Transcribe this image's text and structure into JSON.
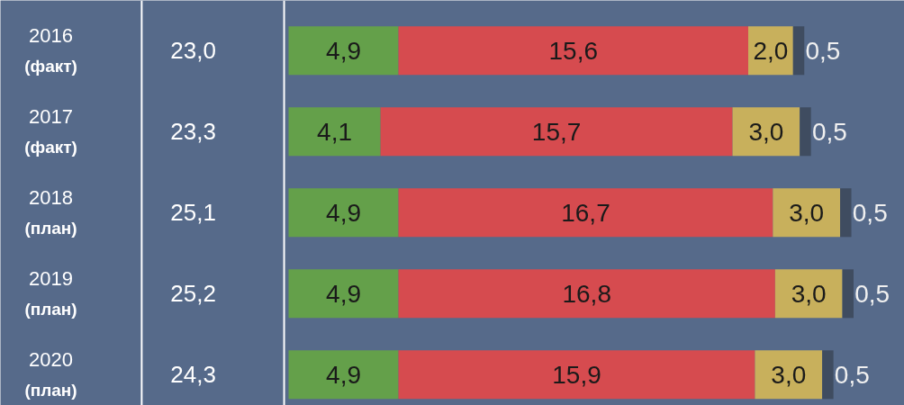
{
  "chart_data": {
    "type": "bar",
    "orientation": "horizontal",
    "stacked": true,
    "categories": [
      "2016\n(факт)",
      "2017\n(факт)",
      "2018\n(план)",
      "2019\n(план)",
      "2020\n(план)"
    ],
    "series": [
      {
        "color": "#64a04a",
        "values": [
          4.9,
          4.1,
          4.9,
          4.9,
          4.9
        ],
        "value_labels": [
          "4,9",
          "4,1",
          "4,9",
          "4,9",
          "4,9"
        ]
      },
      {
        "color": "#d64b4f",
        "values": [
          15.6,
          15.7,
          16.7,
          16.8,
          15.9
        ],
        "value_labels": [
          "15,6",
          "15,7",
          "16,7",
          "16,8",
          "15,9"
        ]
      },
      {
        "color": "#c8b05c",
        "values": [
          2.0,
          3.0,
          3.0,
          3.0,
          3.0
        ],
        "value_labels": [
          "2,0",
          "3,0",
          "3,0",
          "3,0",
          "3,0"
        ]
      },
      {
        "color": "#3f4c60",
        "values": [
          0.5,
          0.5,
          0.5,
          0.5,
          0.5
        ],
        "value_labels": [
          "0,5",
          "0,5",
          "0,5",
          "0,5",
          "0,5"
        ]
      }
    ],
    "totals": [
      "23,0",
      "23,3",
      "25,1",
      "25,2",
      "24,3"
    ],
    "grid": false
  }
}
